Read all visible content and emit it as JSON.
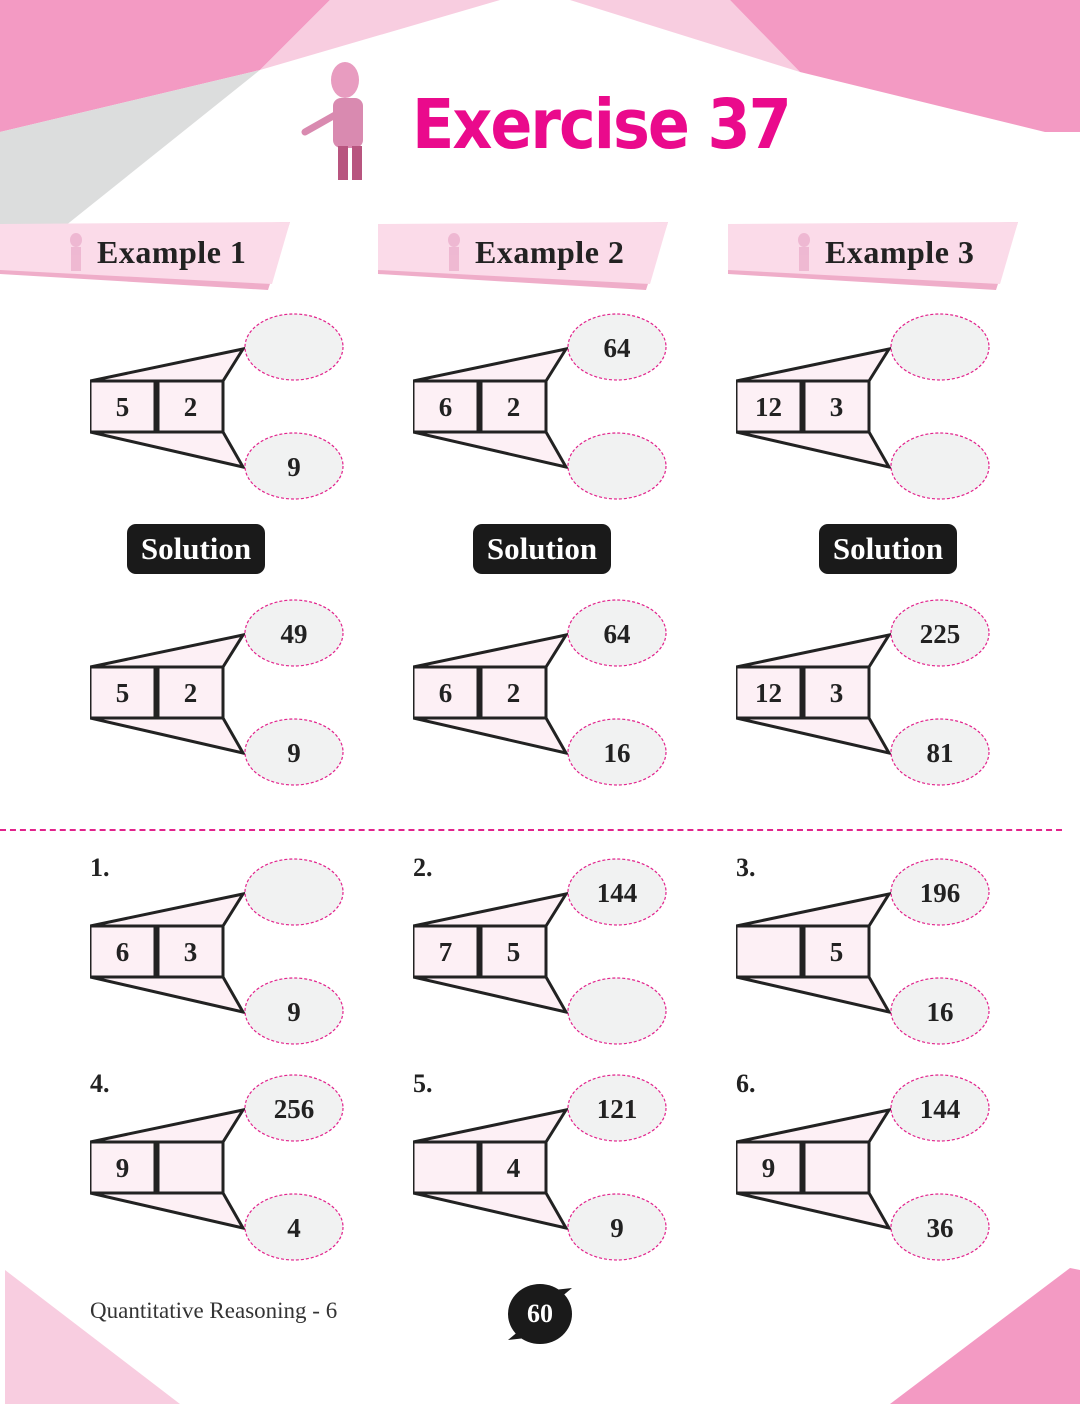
{
  "title": "Exercise 37",
  "colors": {
    "accent": "#ea0a8c",
    "pink": "#f39ac3",
    "light_pink": "#f8cde0",
    "banner": "#fbdbe9",
    "box_fill": "#fdf0f5",
    "ellipse_fill": "#f1f2f2",
    "ellipse_border": "#e2238c"
  },
  "examples": [
    {
      "label": "Example 1",
      "solution_label": "Solution",
      "question": {
        "left": "5",
        "right": "2",
        "top": "",
        "bottom": "9"
      },
      "answer": {
        "left": "5",
        "right": "2",
        "top": "49",
        "bottom": "9"
      }
    },
    {
      "label": "Example 2",
      "solution_label": "Solution",
      "question": {
        "left": "6",
        "right": "2",
        "top": "64",
        "bottom": ""
      },
      "answer": {
        "left": "6",
        "right": "2",
        "top": "64",
        "bottom": "16"
      }
    },
    {
      "label": "Example 3",
      "solution_label": "Solution",
      "question": {
        "left": "12",
        "right": "3",
        "top": "",
        "bottom": ""
      },
      "answer": {
        "left": "12",
        "right": "3",
        "top": "225",
        "bottom": "81"
      }
    }
  ],
  "exercises": [
    {
      "number": "1.",
      "left": "6",
      "right": "3",
      "top": "",
      "bottom": "9"
    },
    {
      "number": "2.",
      "left": "7",
      "right": "5",
      "top": "144",
      "bottom": ""
    },
    {
      "number": "3.",
      "left": "",
      "right": "5",
      "top": "196",
      "bottom": "16"
    },
    {
      "number": "4.",
      "left": "9",
      "right": "",
      "top": "256",
      "bottom": "4"
    },
    {
      "number": "5.",
      "left": "",
      "right": "4",
      "top": "121",
      "bottom": "9"
    },
    {
      "number": "6.",
      "left": "9",
      "right": "",
      "top": "144",
      "bottom": "36"
    }
  ],
  "footer": {
    "book": "Quantitative Reasoning - 6",
    "page": "60"
  }
}
